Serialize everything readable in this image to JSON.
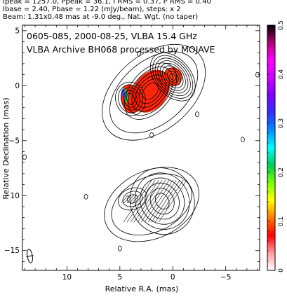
{
  "header": {
    "line1": "Ipeak = 1257.0, Ppeak = 36.1, I RMS = 0.37, P RMS = 0.40",
    "line2": "Ibase = 2.40, Pbase = 1.22 (mJy/beam), steps: x 2",
    "line3": "Beam: 1.31x0.48 mas at -9.0 deg., Nat. Wgt. (no taper)"
  },
  "chart_data": {
    "type": "contour",
    "title_line1": "0605-085, 2000-08-25, VLBA 15.4 GHz",
    "title_line2": "VLBA Archive BH068 processed by MOJAVE",
    "xlabel": "Relative R.A. (mas)",
    "ylabel": "Relative Declination (mas)",
    "xlim": [
      14.2,
      -8.2
    ],
    "ylim": [
      -16.8,
      5.5
    ],
    "x_ticks": [
      10,
      5,
      0,
      -5
    ],
    "y_ticks": [
      5,
      0,
      -5,
      -10,
      -15
    ],
    "colorbar": {
      "range": [
        0,
        0.5
      ],
      "ticks": [
        0,
        0.1,
        0.2,
        0.3,
        0.4,
        0.5
      ],
      "colors": [
        "#ffffff",
        "#ff9aa0",
        "#ff0000",
        "#ff7a00",
        "#ffff00",
        "#7dff00",
        "#00cc55",
        "#00ffff",
        "#008cff",
        "#3030ff",
        "#8000ff",
        "#cc00ff",
        "#ff00ff",
        "#b0007a",
        "#000000"
      ]
    },
    "features": {
      "core_position": [
        0.0,
        0.8
      ],
      "inner_jet_position": [
        2.1,
        -0.5
      ],
      "jet_knot_position": [
        4.0,
        -1.2
      ],
      "lower_component_position": [
        1.0,
        -10.5
      ],
      "lower_inner_position": [
        3.8,
        -10.3
      ],
      "beam_position": [
        13.5,
        -15.5
      ]
    }
  }
}
